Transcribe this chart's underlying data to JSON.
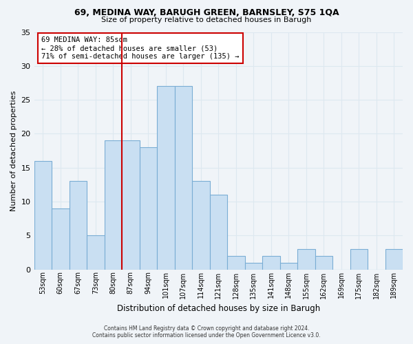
{
  "title1": "69, MEDINA WAY, BARUGH GREEN, BARNSLEY, S75 1QA",
  "title2": "Size of property relative to detached houses in Barugh",
  "xlabel": "Distribution of detached houses by size in Barugh",
  "ylabel": "Number of detached properties",
  "bin_labels": [
    "53sqm",
    "60sqm",
    "67sqm",
    "73sqm",
    "80sqm",
    "87sqm",
    "94sqm",
    "101sqm",
    "107sqm",
    "114sqm",
    "121sqm",
    "128sqm",
    "135sqm",
    "141sqm",
    "148sqm",
    "155sqm",
    "162sqm",
    "169sqm",
    "175sqm",
    "182sqm",
    "189sqm"
  ],
  "bar_heights": [
    16,
    9,
    13,
    5,
    19,
    19,
    18,
    27,
    27,
    13,
    11,
    2,
    1,
    2,
    1,
    3,
    2,
    0,
    3,
    0,
    3
  ],
  "bar_color": "#c9dff2",
  "bar_edge_color": "#7aadd4",
  "vline_x_index": 5,
  "vline_color": "#cc0000",
  "ylim": [
    0,
    35
  ],
  "yticks": [
    0,
    5,
    10,
    15,
    20,
    25,
    30,
    35
  ],
  "annotation_title": "69 MEDINA WAY: 85sqm",
  "annotation_line1": "← 28% of detached houses are smaller (53)",
  "annotation_line2": "71% of semi-detached houses are larger (135) →",
  "footer1": "Contains HM Land Registry data © Crown copyright and database right 2024.",
  "footer2": "Contains public sector information licensed under the Open Government Licence v3.0.",
  "grid_color": "#dde8f0",
  "background_color": "#f0f4f8",
  "plot_bg_color": "#f0f4f8"
}
